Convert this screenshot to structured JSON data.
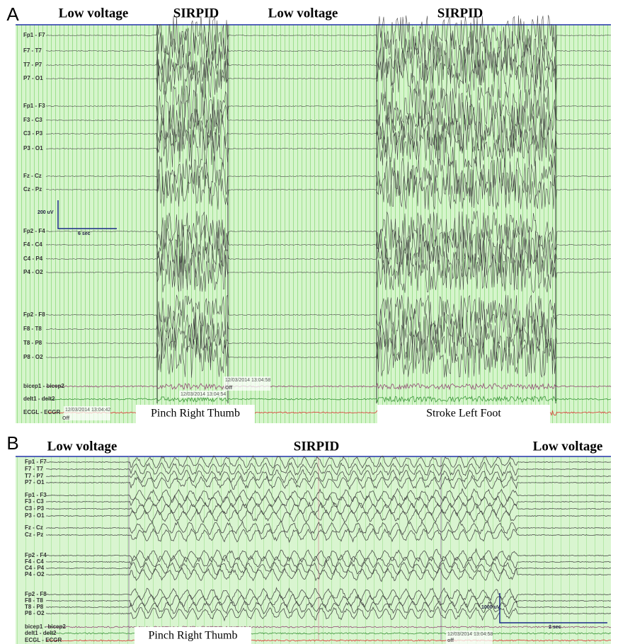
{
  "panels": [
    {
      "label": "A",
      "headers": [
        "Low voltage",
        "SIRPID",
        "Low voltage",
        "SIRPID"
      ],
      "channels": [
        "Fp1 - F7",
        "F7 - T7",
        "T7 - P7",
        "P7 - O1",
        "Fp1 - F3",
        "F3 - C3",
        "C3 - P3",
        "P3 - O1",
        "Fz - Cz",
        "Cz - Pz",
        "Fp2 - F4",
        "F4 - C4",
        "C4 - P4",
        "P4 - O2",
        "Fp2 - F8",
        "F8 - T8",
        "T8 - P8",
        "P8 - O2",
        "bicep1 - bicep2",
        "delt1 - delt2",
        "ECGL - ECGR"
      ],
      "scale": {
        "amplitude": "200 uV",
        "time": "6 sec"
      },
      "timestamps": [
        {
          "time": "12/03/2014 13:04:42",
          "state": "Off"
        },
        {
          "time": "12/03/2014 13:04:54"
        },
        {
          "time": "12/03/2014 13:04:58",
          "state": "Off"
        }
      ],
      "events": [
        "Pinch Right Thumb",
        "Stroke Left Foot"
      ]
    },
    {
      "label": "B",
      "headers": [
        "Low voltage",
        "SIRPID",
        "Low voltage"
      ],
      "channels": [
        "Fp1 - F7",
        "F7 - T7",
        "T7 - P7",
        "P7 - O1",
        "Fp1 - F3",
        "F3 - C3",
        "C3 - P3",
        "P3 - O1",
        "Fz - Cz",
        "Cz - Pz",
        "Fp2 - F4",
        "F4 - C4",
        "C4 - P4",
        "P4 - O2",
        "Fp2 - F8",
        "F8 - T8",
        "T8 - P8",
        "P8 - O2",
        "bicep1 - bicep2",
        "delt1 - delt2",
        "ECGL - ECGR"
      ],
      "scale": {
        "amplitude": "1000 uV",
        "time": "2 sec"
      },
      "timestamps": [
        {
          "time": "12/03/2014 13:04:58",
          "state": "off"
        }
      ],
      "events": [
        "Pinch Right Thumb"
      ]
    }
  ]
}
